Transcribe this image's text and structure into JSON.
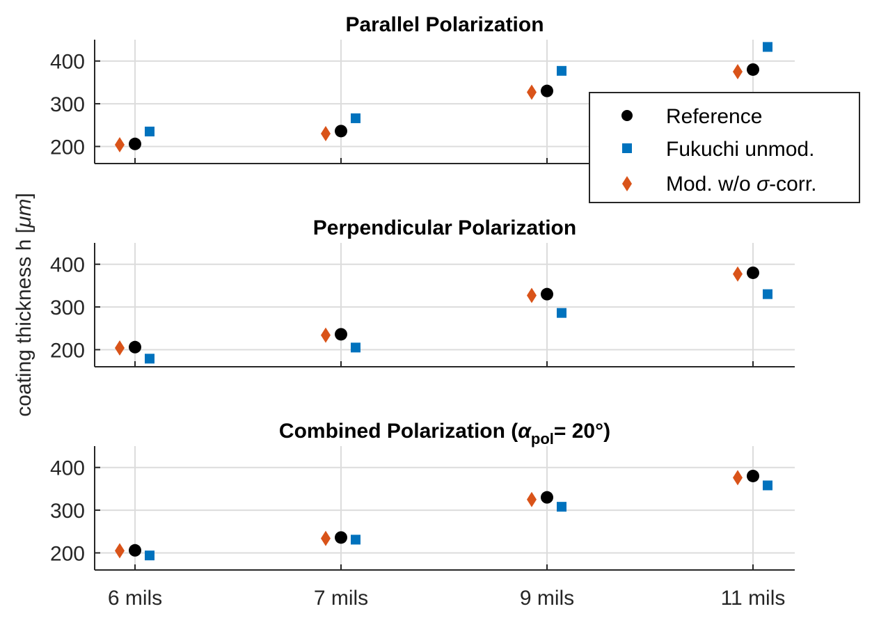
{
  "chart_data": {
    "type": "scatter",
    "ylabel": "coating thickness h [",
    "ylabel_unit": "μm",
    "ylabel_close": "]",
    "categories": [
      "6 mils",
      "7 mils",
      "9 mils",
      "11 mils"
    ],
    "ylim": [
      160,
      450
    ],
    "yticks": [
      200,
      300,
      400
    ],
    "legend": {
      "position": "right",
      "entries": [
        {
          "key": "reference",
          "label": "Reference",
          "marker": "circle",
          "color": "#000000"
        },
        {
          "key": "fukuchi",
          "label": "Fukuchi unmod.",
          "marker": "square",
          "color": "#0072bd"
        },
        {
          "key": "mod",
          "label": "Mod. w/o ",
          "label_sigma": "σ",
          "label_end": "-corr.",
          "marker": "diamond",
          "color": "#d95319"
        }
      ]
    },
    "panels": [
      {
        "title": "Parallel Polarization",
        "series": [
          {
            "key": "reference",
            "values": [
              206,
              236,
              330,
              380
            ]
          },
          {
            "key": "fukuchi",
            "values": [
              235,
              266,
              377,
              433
            ]
          },
          {
            "key": "mod",
            "values": [
              204,
              230,
              327,
              375
            ]
          }
        ]
      },
      {
        "title": "Perpendicular Polarization",
        "series": [
          {
            "key": "reference",
            "values": [
              206,
              236,
              330,
              380
            ]
          },
          {
            "key": "fukuchi",
            "values": [
              179,
              205,
              286,
              330
            ]
          },
          {
            "key": "mod",
            "values": [
              204,
              234,
              327,
              377
            ]
          }
        ]
      },
      {
        "title": "Combined Polarization (",
        "title_alpha": "α",
        "title_sub": "pol",
        "title_end": "= 20°)",
        "series": [
          {
            "key": "reference",
            "values": [
              206,
              236,
              330,
              380
            ]
          },
          {
            "key": "fukuchi",
            "values": [
              194,
              231,
              308,
              358
            ]
          },
          {
            "key": "mod",
            "values": [
              205,
              234,
              325,
              376
            ]
          }
        ]
      }
    ]
  }
}
